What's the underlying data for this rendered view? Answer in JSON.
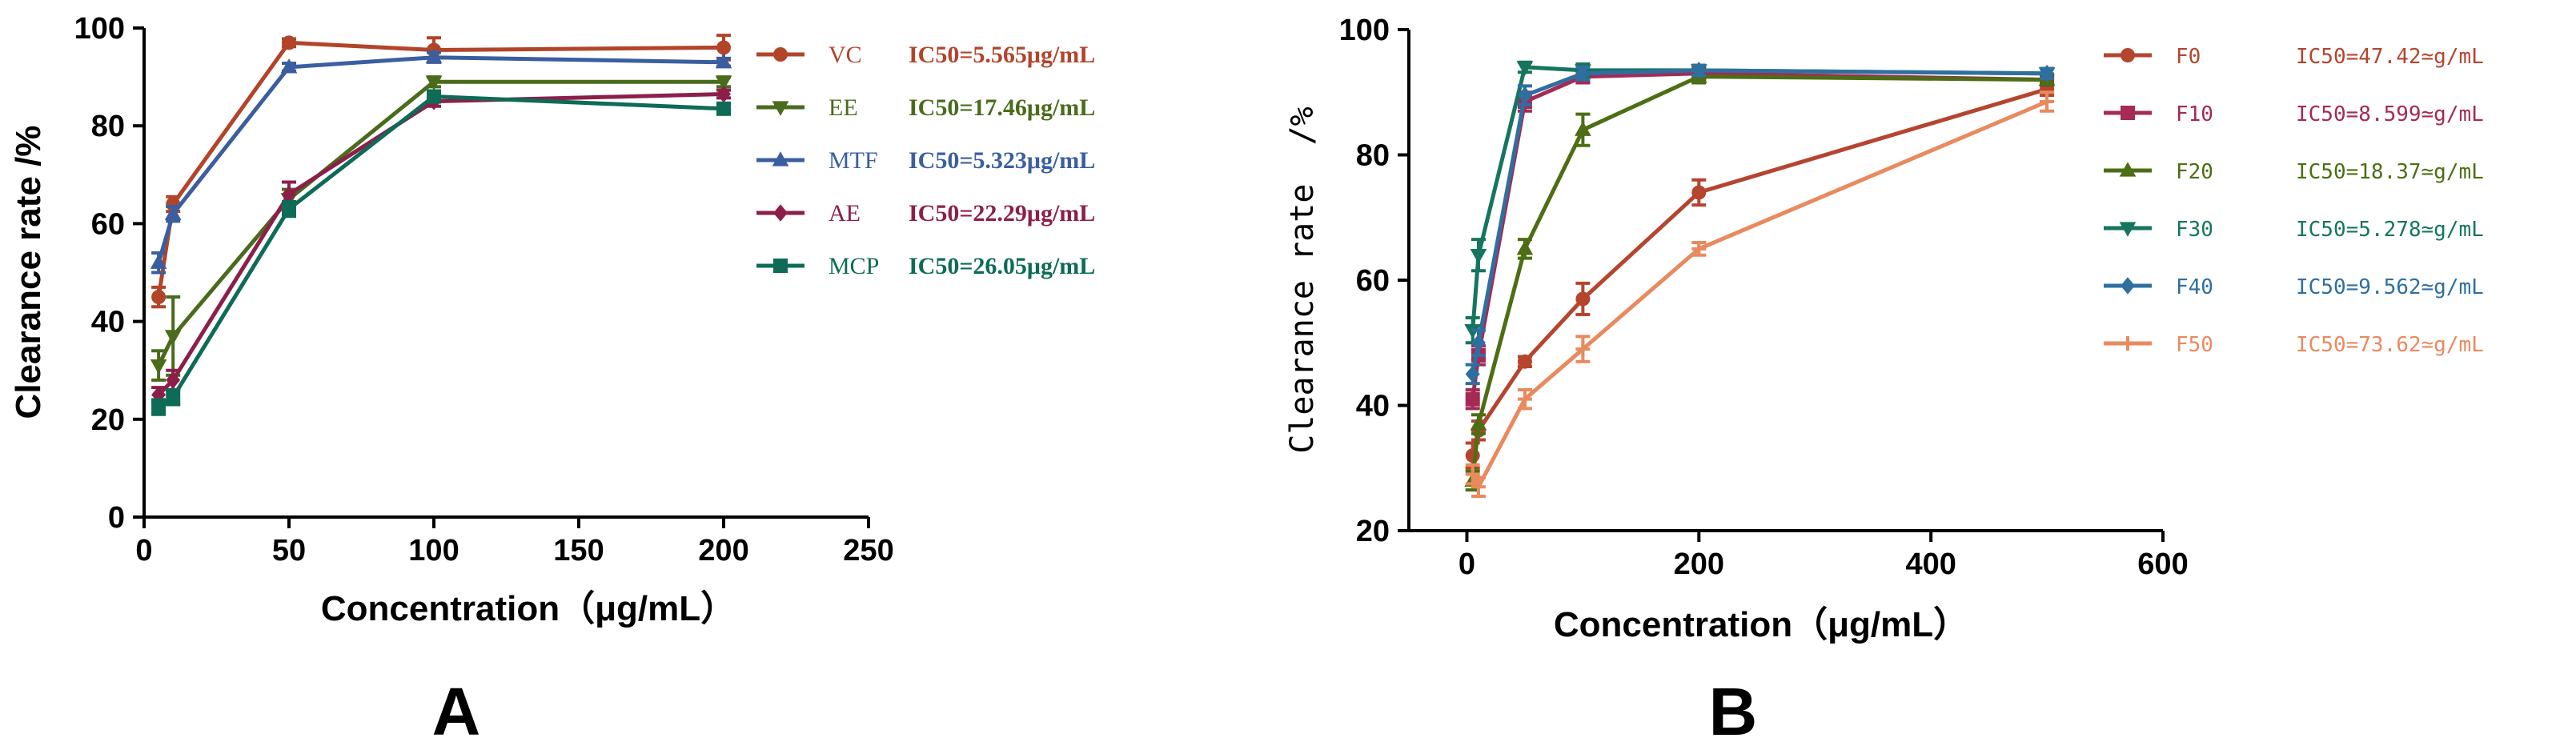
{
  "chart_data": [
    {
      "type": "line",
      "panel_label": "A",
      "title": "",
      "xlabel": "Concentration（μg/mL）",
      "ylabel": "Clearance rate /%",
      "xlim": [
        0,
        250
      ],
      "ylim": [
        0,
        100
      ],
      "xticks": [
        "0",
        "50",
        "100",
        "150",
        "200",
        "250"
      ],
      "yticks": [
        "0",
        "20",
        "40",
        "60",
        "80",
        "100"
      ],
      "legend_position": "right",
      "series": [
        {
          "name": "VC",
          "ic50": "IC50=5.565μg/mL",
          "color": "#b2442a",
          "marker": "circle",
          "x": [
            5,
            10,
            50,
            100,
            200
          ],
          "values": [
            45,
            64,
            97,
            95.5,
            96
          ],
          "err": [
            2,
            1.5,
            0.8,
            2.5,
            2.5
          ]
        },
        {
          "name": "EE",
          "ic50": "IC50=17.46μg/mL",
          "color": "#4a6b1c",
          "marker": "triangle-down",
          "x": [
            5,
            10,
            50,
            100,
            200
          ],
          "values": [
            31,
            37,
            65,
            89,
            89
          ],
          "err": [
            3,
            8,
            2,
            1,
            1
          ]
        },
        {
          "name": "MTF",
          "ic50": "IC50=5.323μg/mL",
          "color": "#3a5ea0",
          "marker": "triangle-up",
          "x": [
            5,
            10,
            50,
            100,
            200
          ],
          "values": [
            52,
            62,
            92,
            94,
            93
          ],
          "err": [
            2,
            1.5,
            0.8,
            1,
            0.8
          ]
        },
        {
          "name": "AE",
          "ic50": "IC50=22.29μg/mL",
          "color": "#8c1f4a",
          "marker": "diamond",
          "x": [
            5,
            10,
            50,
            100,
            200
          ],
          "values": [
            25,
            28,
            66,
            85,
            86.5
          ],
          "err": [
            1.5,
            2,
            2.5,
            1,
            0.8
          ]
        },
        {
          "name": "MCP",
          "ic50": "IC50=26.05μg/mL",
          "color": "#0d6b56",
          "marker": "square",
          "x": [
            5,
            10,
            50,
            100,
            200
          ],
          "values": [
            22.5,
            24.5,
            63,
            86,
            83.5
          ],
          "err": [
            1.5,
            1.5,
            1.5,
            1,
            0.8
          ]
        }
      ]
    },
    {
      "type": "line",
      "panel_label": "B",
      "title": "",
      "xlabel": "Concentration（μg/mL）",
      "ylabel": "Clearance rate  /%",
      "xlim": [
        -50,
        600
      ],
      "ylim": [
        20,
        100
      ],
      "xticks": [
        "0",
        "200",
        "400",
        "600"
      ],
      "yticks": [
        "20",
        "40",
        "60",
        "80",
        "100"
      ],
      "legend_position": "right",
      "series": [
        {
          "name": "F0",
          "ic50": "IC50=47.42≃g/mL",
          "color": "#b5452f",
          "marker": "circle",
          "x": [
            5,
            10,
            50,
            100,
            200,
            500
          ],
          "values": [
            32,
            36,
            47,
            57,
            74,
            90.5
          ],
          "err": [
            2,
            1.5,
            0.8,
            2.5,
            2,
            1
          ]
        },
        {
          "name": "F10",
          "ic50": "IC50=8.599≃g/mL",
          "color": "#a52a55",
          "marker": "square",
          "x": [
            5,
            10,
            50,
            100,
            200,
            500
          ],
          "values": [
            41,
            48,
            88.5,
            92.5,
            93,
            92
          ],
          "err": [
            1.5,
            1.5,
            1.5,
            1,
            0.8,
            0.8
          ]
        },
        {
          "name": "F20",
          "ic50": "IC50=18.37≃g/mL",
          "color": "#4d6e14",
          "marker": "triangle-up",
          "x": [
            5,
            10,
            50,
            100,
            200,
            500
          ],
          "values": [
            28,
            37,
            65,
            84,
            92.5,
            92
          ],
          "err": [
            1.5,
            1.5,
            1.5,
            2.5,
            1,
            0.8
          ]
        },
        {
          "name": "F30",
          "ic50": "IC50=5.278≃g/mL",
          "color": "#16755e",
          "marker": "triangle-down",
          "x": [
            5,
            10,
            50,
            100,
            200,
            500
          ],
          "values": [
            52,
            64,
            94,
            93.5,
            93.5,
            93
          ],
          "err": [
            2,
            2.5,
            0.8,
            1,
            0.8,
            0.8
          ]
        },
        {
          "name": "F40",
          "ic50": "IC50=9.562≃g/mL",
          "color": "#2f6fa0",
          "marker": "diamond",
          "x": [
            5,
            10,
            50,
            100,
            200,
            500
          ],
          "values": [
            45,
            50,
            89.5,
            93,
            93.5,
            93
          ],
          "err": [
            1.5,
            2,
            1.5,
            1,
            0.8,
            0.8
          ]
        },
        {
          "name": "F50",
          "ic50": "IC50=73.62≃g/mL",
          "color": "#e98a5e",
          "marker": "cross",
          "x": [
            5,
            10,
            50,
            100,
            200,
            500
          ],
          "values": [
            29,
            27,
            41,
            49,
            65,
            88.5
          ],
          "err": [
            1.5,
            1.5,
            1.5,
            2,
            1,
            1.5
          ]
        }
      ]
    }
  ]
}
